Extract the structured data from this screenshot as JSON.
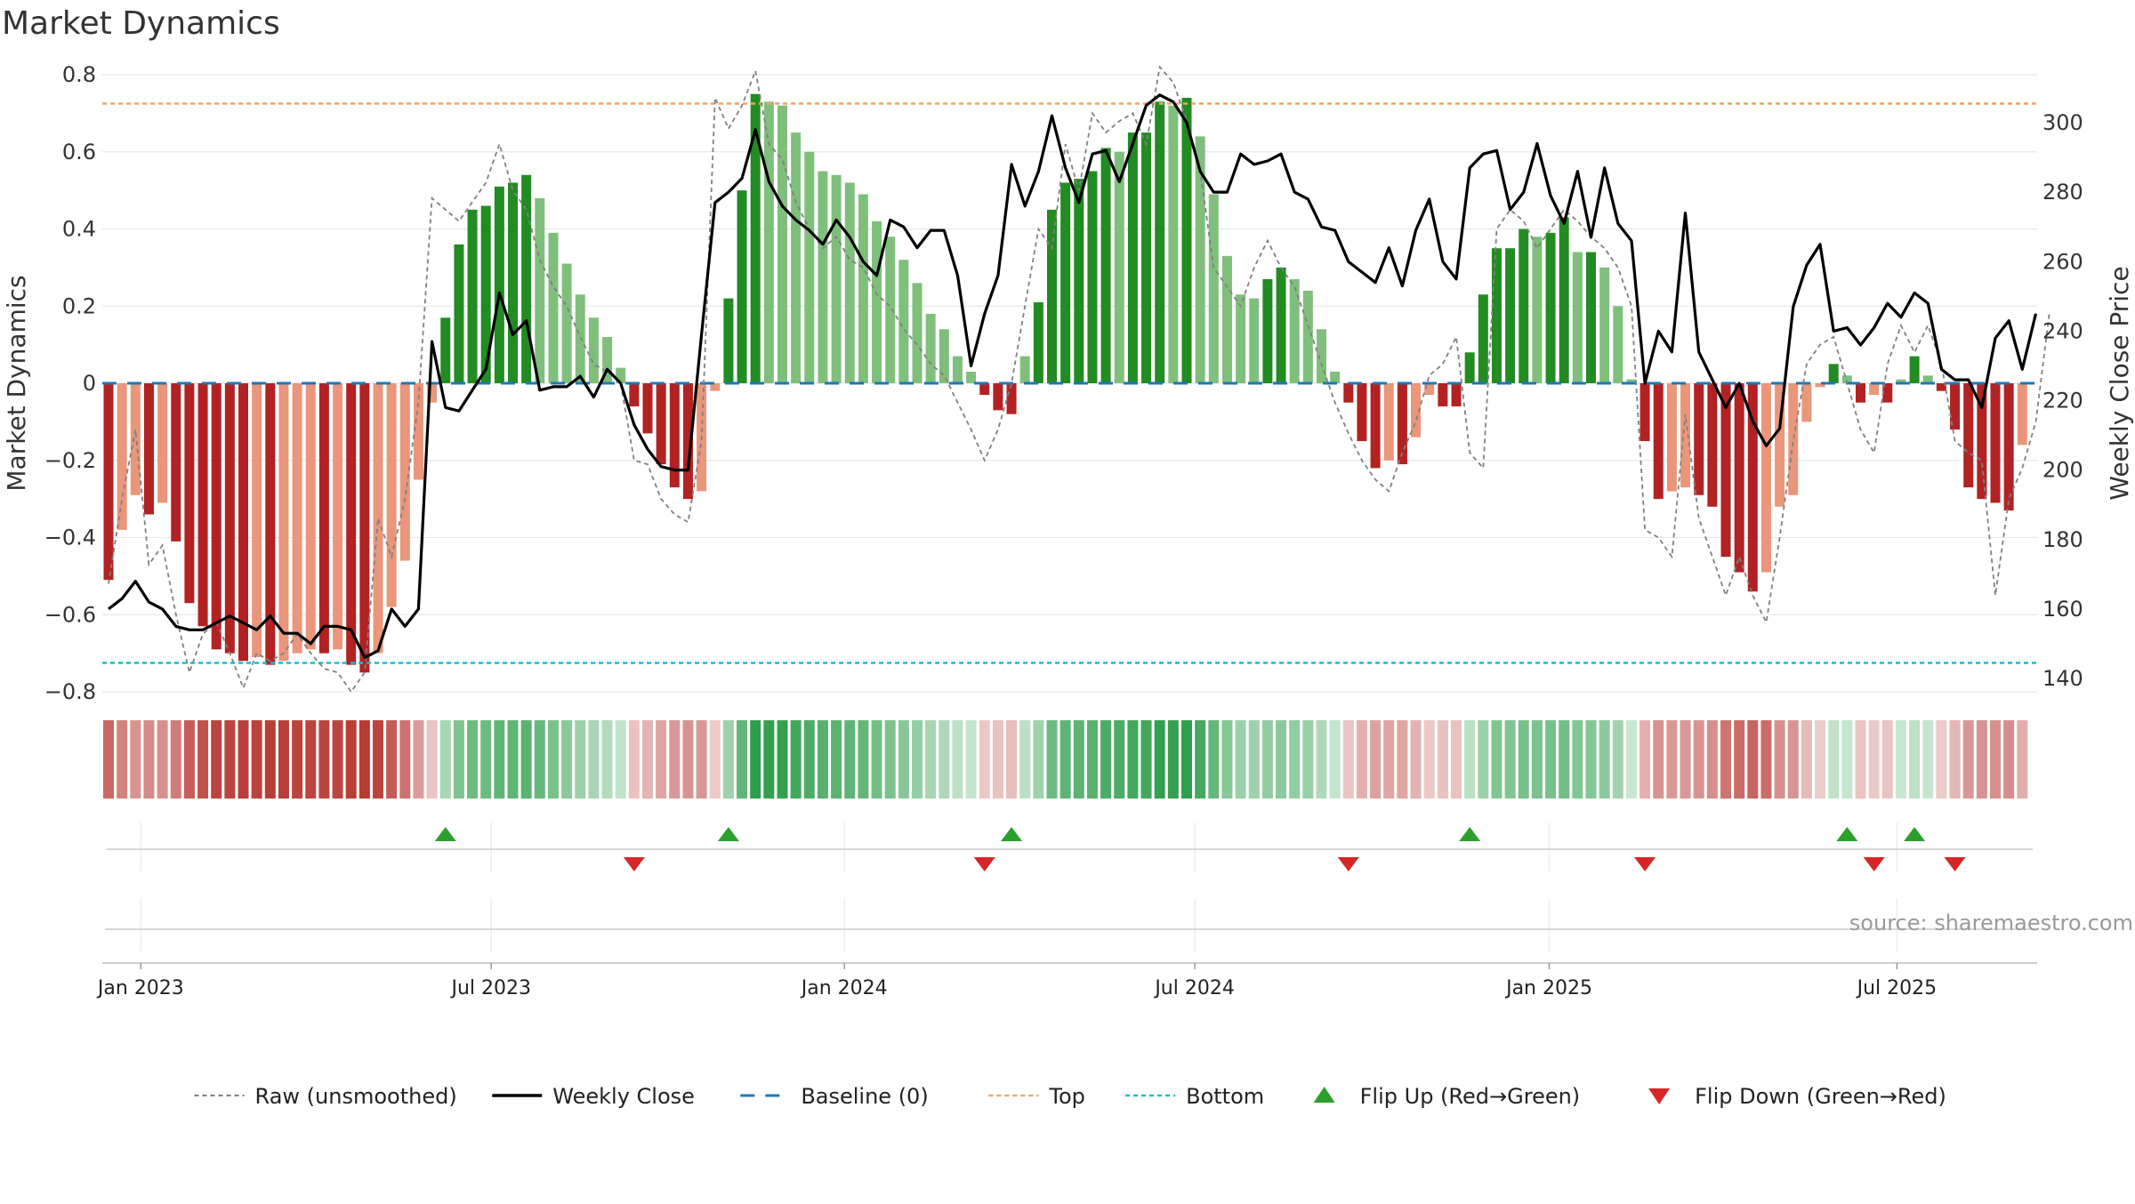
{
  "title": "Market Dynamics",
  "source_text": "source: sharemaestro.com",
  "colors": {
    "strong_green": "#228b22",
    "light_green": "#7fbf7b",
    "strong_red": "#b22222",
    "light_red": "#e9967a",
    "close_line": "#000000",
    "raw_line": "#808080",
    "baseline": "#1f77b4",
    "top_line": "#f4a460",
    "bottom_line": "#17becf",
    "flip_up": "#2ca02c",
    "flip_down": "#d62728",
    "grid": "#e8e8e8"
  },
  "chart_data": {
    "type": "bar",
    "ylabel": "Market Dynamics",
    "y2label": "Weekly Close Price",
    "ylim": [
      -0.8,
      0.8
    ],
    "y2lim": [
      134,
      316
    ],
    "yticks": [
      -0.8,
      -0.6,
      -0.4,
      -0.2,
      0,
      0.2,
      0.4,
      0.6,
      0.8
    ],
    "yticks_labels": [
      "−0.8",
      "−0.6",
      "−0.4",
      "−0.2",
      "0",
      "0.2",
      "0.4",
      "0.6",
      "0.8"
    ],
    "y2ticks": [
      140,
      160,
      180,
      200,
      220,
      240,
      260,
      280,
      300
    ],
    "xticks": [
      {
        "label": "Jan 2023",
        "index": 2.4
      },
      {
        "label": "Jul 2023",
        "index": 28.4
      },
      {
        "label": "Jan 2024",
        "index": 54.6
      },
      {
        "label": "Jul 2024",
        "index": 80.6
      },
      {
        "label": "Jan 2025",
        "index": 106.9
      },
      {
        "label": "Jul 2025",
        "index": 132.7
      }
    ],
    "top_level": 0.725,
    "bottom_level": -0.725,
    "baseline": 0,
    "legend_position": "bottom",
    "legend": [
      {
        "label": "Raw (unsmoothed)",
        "style": "raw"
      },
      {
        "label": "Weekly Close",
        "style": "close"
      },
      {
        "label": "Baseline (0)",
        "style": "baseline"
      },
      {
        "label": "Top",
        "style": "top"
      },
      {
        "label": "Bottom",
        "style": "bottom"
      },
      {
        "label": "Flip Up (Red→Green)",
        "style": "flip_up"
      },
      {
        "label": "Flip Down (Green→Red)",
        "style": "flip_down"
      }
    ],
    "dynamics": [
      -0.51,
      -0.38,
      -0.29,
      -0.34,
      -0.31,
      -0.41,
      -0.57,
      -0.63,
      -0.69,
      -0.7,
      -0.72,
      -0.71,
      -0.73,
      -0.72,
      -0.7,
      -0.69,
      -0.7,
      -0.69,
      -0.73,
      -0.75,
      -0.7,
      -0.58,
      -0.46,
      -0.25,
      -0.05,
      0.17,
      0.36,
      0.45,
      0.46,
      0.51,
      0.52,
      0.54,
      0.48,
      0.39,
      0.31,
      0.23,
      0.17,
      0.12,
      0.04,
      -0.06,
      -0.13,
      -0.21,
      -0.27,
      -0.3,
      -0.28,
      -0.02,
      0.22,
      0.5,
      0.75,
      0.73,
      0.72,
      0.65,
      0.6,
      0.55,
      0.54,
      0.52,
      0.49,
      0.42,
      0.38,
      0.32,
      0.26,
      0.18,
      0.14,
      0.07,
      0.03,
      -0.03,
      -0.07,
      -0.08,
      0.07,
      0.21,
      0.45,
      0.52,
      0.53,
      0.55,
      0.61,
      0.6,
      0.65,
      0.65,
      0.73,
      0.72,
      0.74,
      0.64,
      0.49,
      0.33,
      0.23,
      0.22,
      0.27,
      0.3,
      0.27,
      0.24,
      0.14,
      0.03,
      -0.05,
      -0.15,
      -0.22,
      -0.2,
      -0.21,
      -0.14,
      -0.03,
      -0.06,
      -0.06,
      0.08,
      0.23,
      0.35,
      0.35,
      0.4,
      0.38,
      0.39,
      0.43,
      0.34,
      0.34,
      0.3,
      0.2,
      0.01,
      -0.15,
      -0.3,
      -0.28,
      -0.27,
      -0.29,
      -0.32,
      -0.45,
      -0.49,
      -0.54,
      -0.49,
      -0.32,
      -0.29,
      -0.1,
      -0.01,
      0.05,
      0.02,
      -0.05,
      -0.03,
      -0.05,
      0.01,
      0.07,
      0.02,
      -0.02,
      -0.12,
      -0.27,
      -0.3,
      -0.31,
      -0.33,
      -0.16
    ],
    "raw": [
      -0.52,
      -0.3,
      -0.12,
      -0.47,
      -0.42,
      -0.6,
      -0.75,
      -0.65,
      -0.62,
      -0.7,
      -0.79,
      -0.7,
      -0.72,
      -0.7,
      -0.65,
      -0.7,
      -0.74,
      -0.75,
      -0.8,
      -0.75,
      -0.35,
      -0.45,
      -0.3,
      -0.05,
      0.48,
      0.45,
      0.42,
      0.47,
      0.52,
      0.62,
      0.5,
      0.45,
      0.32,
      0.25,
      0.2,
      0.12,
      0.05,
      0.03,
      0.0,
      -0.2,
      -0.21,
      -0.3,
      -0.34,
      -0.36,
      -0.15,
      0.74,
      0.66,
      0.72,
      0.81,
      0.62,
      0.58,
      0.47,
      0.4,
      0.35,
      0.38,
      0.32,
      0.3,
      0.23,
      0.2,
      0.14,
      0.1,
      0.05,
      0.02,
      -0.05,
      -0.12,
      -0.2,
      -0.12,
      0.0,
      0.2,
      0.4,
      0.35,
      0.62,
      0.5,
      0.7,
      0.65,
      0.68,
      0.7,
      0.62,
      0.82,
      0.78,
      0.68,
      0.55,
      0.3,
      0.25,
      0.2,
      0.3,
      0.37,
      0.3,
      0.25,
      0.15,
      0.05,
      -0.05,
      -0.13,
      -0.2,
      -0.25,
      -0.28,
      -0.18,
      -0.1,
      0.02,
      0.05,
      0.12,
      -0.18,
      -0.22,
      0.4,
      0.45,
      0.42,
      0.35,
      0.4,
      0.45,
      0.42,
      0.38,
      0.35,
      0.3,
      0.2,
      -0.38,
      -0.4,
      -0.45,
      -0.08,
      -0.35,
      -0.45,
      -0.55,
      -0.45,
      -0.55,
      -0.62,
      -0.4,
      -0.15,
      0.05,
      0.1,
      0.12,
      0.0,
      -0.12,
      -0.18,
      0.05,
      0.15,
      0.08,
      0.15,
      0.05,
      -0.15,
      -0.18,
      -0.2,
      -0.55,
      -0.3,
      -0.22,
      -0.1,
      0.18
    ],
    "close": [
      160,
      163,
      168,
      162,
      160,
      155,
      154,
      154,
      156,
      158,
      156,
      154,
      158,
      153,
      153,
      150,
      155,
      155,
      154,
      146,
      148,
      160,
      155,
      160,
      237,
      218,
      217,
      223,
      229,
      251,
      239,
      243,
      223,
      224,
      224,
      227,
      221,
      229,
      225,
      213,
      206,
      201,
      200,
      200,
      239,
      277,
      280,
      284,
      298,
      283,
      276,
      272,
      269,
      265,
      272,
      267,
      260,
      256,
      272,
      270,
      264,
      269,
      269,
      256,
      230,
      245,
      256,
      288,
      276,
      286,
      302,
      287,
      277,
      291,
      292,
      283,
      294,
      305,
      308,
      306,
      300,
      286,
      280,
      280,
      291,
      288,
      289,
      291,
      280,
      278,
      270,
      269,
      260,
      257,
      254,
      264,
      253,
      269,
      278,
      260,
      255,
      287,
      291,
      292,
      275,
      280,
      294,
      279,
      271,
      286,
      267,
      287,
      271,
      266,
      225,
      240,
      234,
      274,
      234,
      226,
      218,
      225,
      214,
      207,
      212,
      247,
      259,
      265,
      240,
      241,
      236,
      241,
      248,
      244,
      251,
      248,
      229,
      226,
      226,
      218,
      238,
      243,
      229,
      245
    ],
    "flips": [
      {
        "index": 25,
        "dir": "up"
      },
      {
        "index": 39,
        "dir": "down"
      },
      {
        "index": 46,
        "dir": "up"
      },
      {
        "index": 65,
        "dir": "down"
      },
      {
        "index": 67,
        "dir": "up"
      },
      {
        "index": 92,
        "dir": "down"
      },
      {
        "index": 101,
        "dir": "up"
      },
      {
        "index": 114,
        "dir": "down"
      },
      {
        "index": 129,
        "dir": "up"
      },
      {
        "index": 131,
        "dir": "down"
      },
      {
        "index": 134,
        "dir": "up"
      },
      {
        "index": 137,
        "dir": "down"
      }
    ]
  }
}
